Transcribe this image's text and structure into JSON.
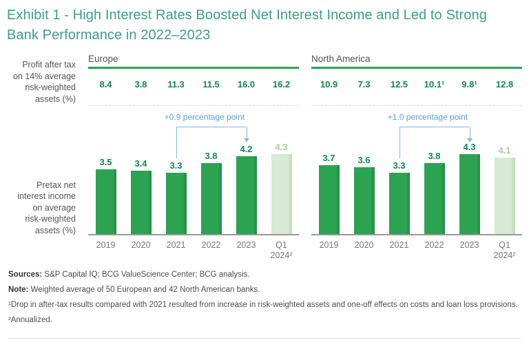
{
  "title": "Exhibit 1 - High Interest Rates Boosted Net Interest Income and Led to Strong Bank Performance in 2022–2023",
  "row_labels": {
    "profit": "Profit after tax\non 14% average\nrisk-weighted\nassets (%)",
    "pretax": "Pretax net\ninterest income\non average\nrisk-weighted\nassets (%)"
  },
  "chart_data": [
    {
      "type": "bar",
      "title": "Europe",
      "categories": [
        "2019",
        "2020",
        "2021",
        "2022",
        "2023",
        "Q1\n2024²"
      ],
      "series": [
        {
          "name": "Profit after tax on 14% average risk-weighted assets (%)",
          "values": [
            "8.4",
            "3.8",
            "11.3",
            "11.5",
            "16.0",
            "16.2"
          ]
        },
        {
          "name": "Pretax net interest income on average risk-weighted assets (%)",
          "values": [
            3.5,
            3.4,
            3.3,
            3.8,
            4.2,
            4.3
          ]
        }
      ],
      "annotation": "+0.9 percentage point",
      "annotation_span": [
        "2021",
        "2023"
      ],
      "highlight_last_bar": true,
      "ylim": [
        0,
        5
      ],
      "grid": false,
      "legend": "none"
    },
    {
      "type": "bar",
      "title": "North America",
      "categories": [
        "2019",
        "2020",
        "2021",
        "2022",
        "2023",
        "Q1\n2024²"
      ],
      "series": [
        {
          "name": "Profit after tax on 14% average risk-weighted assets (%)",
          "values": [
            "10.9",
            "7.3",
            "12.5",
            "10.1¹",
            "9.8¹",
            "12.8"
          ]
        },
        {
          "name": "Pretax net interest income on average risk-weighted assets (%)",
          "values": [
            3.7,
            3.6,
            3.3,
            3.8,
            4.3,
            4.1
          ]
        }
      ],
      "annotation": "+1.0 percentage point",
      "annotation_span": [
        "2021",
        "2023"
      ],
      "highlight_last_bar": true,
      "ylim": [
        0,
        5
      ],
      "grid": false,
      "legend": "none"
    }
  ],
  "colors": {
    "title_green": "#3aa284",
    "bar_green": "#2ba350",
    "bar_light_green": "#d7ead3",
    "value_green": "#0e8a4d",
    "light_label_green": "#a3d3a0",
    "annotation_blue": "#5b9fe0",
    "rule_green": "#2aa450",
    "axis_gray": "#999999"
  },
  "footnotes": {
    "sources_label": "Sources:",
    "sources_text": " S&P Capital IQ; BCG ValueScience Center; BCG analysis.",
    "note_label": "Note:",
    "note_text": " Weighted average of 50 European and 42 North American banks.",
    "fn1": "¹Drop in after-tax results compared with 2021 resulted from increase in risk-weighted assets and one-off effects on costs and loan loss provisions.",
    "fn2": "²Annualized."
  }
}
